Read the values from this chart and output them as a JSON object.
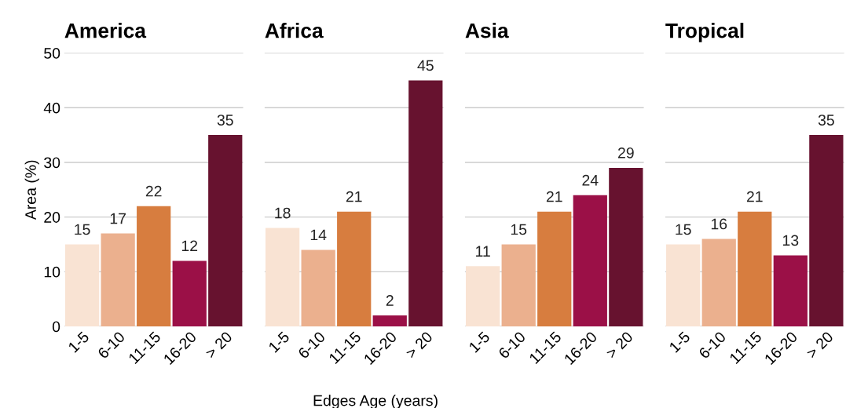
{
  "chart_data": [
    {
      "type": "bar",
      "title": "America",
      "ylabel": "Area (%)",
      "categories": [
        "1-5",
        "6-10",
        "11-15",
        "16-20",
        "> 20"
      ],
      "values": [
        15,
        17,
        22,
        12,
        35
      ],
      "colors": [
        "#f9e3d3",
        "#ebb08e",
        "#d77d3f",
        "#9b1047",
        "#67122f"
      ],
      "ylim": [
        0,
        50
      ],
      "yticks": [
        0,
        10,
        20,
        30,
        40,
        50
      ],
      "grid": "y",
      "data_labels": true
    },
    {
      "type": "bar",
      "title": "Africa",
      "xlabel": "Edges Age (years)",
      "categories": [
        "1-5",
        "6-10",
        "11-15",
        "16-20",
        "> 20"
      ],
      "values": [
        18,
        14,
        21,
        2,
        45
      ],
      "colors": [
        "#f9e3d3",
        "#ebb08e",
        "#d77d3f",
        "#9b1047",
        "#67122f"
      ],
      "ylim": [
        0,
        50
      ],
      "yticks": [
        0,
        10,
        20,
        30,
        40,
        50
      ],
      "grid": "y",
      "data_labels": true,
      "tick_labels": "x"
    },
    {
      "type": "bar",
      "title": "Asia",
      "categories": [
        "1-5",
        "6-10",
        "11-15",
        "16-20",
        "> 20"
      ],
      "values": [
        11,
        15,
        21,
        24,
        29
      ],
      "colors": [
        "#f9e3d3",
        "#ebb08e",
        "#d77d3f",
        "#9b1047",
        "#67122f"
      ],
      "ylim": [
        0,
        50
      ],
      "yticks": [
        0,
        10,
        20,
        30,
        40,
        50
      ],
      "grid": "y",
      "data_labels": true,
      "tick_labels": "x"
    },
    {
      "type": "bar",
      "title": "Tropical",
      "categories": [
        "1-5",
        "6-10",
        "11-15",
        "16-20",
        "> 20"
      ],
      "values": [
        15,
        16,
        21,
        13,
        35
      ],
      "colors": [
        "#f9e3d3",
        "#ebb08e",
        "#d77d3f",
        "#9b1047",
        "#67122f"
      ],
      "ylim": [
        0,
        50
      ],
      "yticks": [
        0,
        10,
        20,
        30,
        40,
        50
      ],
      "grid": "y",
      "data_labels": true,
      "tick_labels": "x"
    }
  ]
}
